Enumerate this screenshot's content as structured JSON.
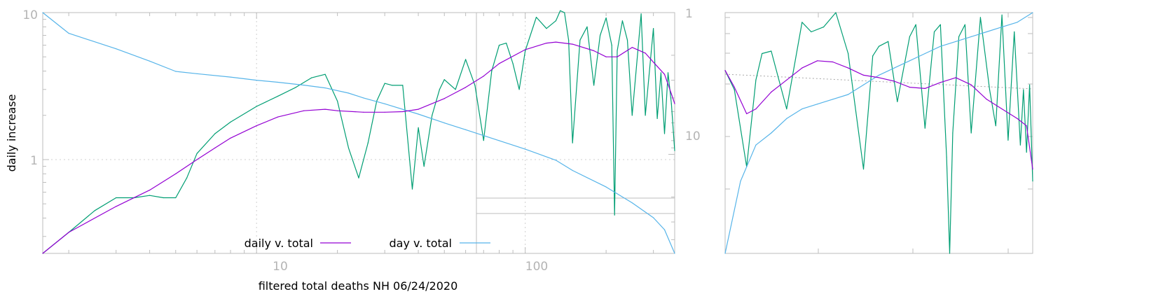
{
  "chart_data": [
    {
      "type": "line",
      "title": "",
      "xlabel": "filtered total deaths NH 06/24/2020",
      "ylabel": "daily increase",
      "xscale": "log",
      "yscale": "log",
      "xlim": [
        1.6,
        360
      ],
      "ylim": [
        0.23,
        10
      ],
      "y2lim": [
        1,
        50
      ],
      "y2_reversed": true,
      "x_ticks": [
        "10",
        "100"
      ],
      "y_ticks": [
        "1",
        "10"
      ],
      "y2_ticks": [
        "1",
        "10"
      ],
      "grid": true,
      "legend_position": "bottom-center",
      "series": [
        {
          "name": "daily v. total",
          "color": "#9400d3",
          "x": [
            1.6,
            2,
            3,
            4,
            5,
            6,
            7,
            8,
            10,
            12,
            15,
            18,
            20,
            25,
            30,
            35,
            40,
            50,
            60,
            70,
            80,
            100,
            120,
            130,
            150,
            180,
            200,
            220,
            250,
            280,
            300,
            330,
            350,
            360
          ],
          "y": [
            0.23,
            0.32,
            0.48,
            0.62,
            0.8,
            1.0,
            1.2,
            1.4,
            1.7,
            1.95,
            2.15,
            2.2,
            2.15,
            2.1,
            2.1,
            2.12,
            2.2,
            2.6,
            3.1,
            3.7,
            4.5,
            5.6,
            6.2,
            6.3,
            6.1,
            5.5,
            5.0,
            5.0,
            5.8,
            5.3,
            4.6,
            3.8,
            2.8,
            2.4
          ]
        },
        {
          "name": "day v. total",
          "color": "#56b4e9",
          "x": [
            1.6,
            2,
            3,
            4,
            5,
            6,
            8,
            10,
            12,
            15,
            18,
            22,
            25,
            30,
            40,
            50,
            60,
            80,
            100,
            130,
            150,
            200,
            250,
            300,
            330,
            360
          ],
          "y": [
            1,
            1.4,
            1.8,
            2.2,
            2.6,
            2.7,
            2.85,
            3.0,
            3.1,
            3.25,
            3.4,
            3.7,
            4.0,
            4.4,
            5.2,
            6.0,
            6.7,
            8.0,
            9.2,
            11,
            13,
            17,
            22,
            28,
            34,
            50
          ]
        },
        {
          "name": "",
          "color": "#009e73",
          "x": [
            1.6,
            2,
            2.5,
            3,
            3.5,
            4,
            4.5,
            5,
            5.5,
            6,
            7,
            8,
            10,
            12,
            14,
            16,
            18,
            20,
            22,
            24,
            26,
            28,
            30,
            32,
            35,
            38,
            40,
            42,
            45,
            48,
            50,
            55,
            60,
            65,
            70,
            75,
            80,
            85,
            90,
            95,
            100,
            110,
            120,
            130,
            135,
            140,
            145,
            150,
            160,
            170,
            180,
            190,
            200,
            210,
            215,
            220,
            230,
            240,
            250,
            270,
            280,
            300,
            310,
            320,
            330,
            340,
            350,
            360
          ],
          "y": [
            0.23,
            0.32,
            0.45,
            0.55,
            0.55,
            0.57,
            0.55,
            0.55,
            0.75,
            1.1,
            1.5,
            1.8,
            2.3,
            2.7,
            3.1,
            3.6,
            3.8,
            2.5,
            1.2,
            0.75,
            1.3,
            2.5,
            3.3,
            3.2,
            3.2,
            0.63,
            1.65,
            0.9,
            2.0,
            3.0,
            3.5,
            3.0,
            4.8,
            3.2,
            1.35,
            4.0,
            6.0,
            6.2,
            4.5,
            3.0,
            5.5,
            9.3,
            7.8,
            8.8,
            10.3,
            10.0,
            6.5,
            1.3,
            6.5,
            8.0,
            3.2,
            7.0,
            9.2,
            6.0,
            0.42,
            5.5,
            8.8,
            6.5,
            2.0,
            9.8,
            2.0,
            7.8,
            1.9,
            3.9,
            1.5,
            3.9,
            2.4,
            1.15
          ]
        }
      ]
    },
    {
      "type": "line",
      "title": "",
      "xlabel": "",
      "ylabel": "",
      "grid": false,
      "legend_position": "",
      "series": [
        {
          "name": "",
          "color": "#9400d3",
          "x": [
            0,
            0.03,
            0.07,
            0.1,
            0.15,
            0.2,
            0.25,
            0.3,
            0.35,
            0.4,
            0.45,
            0.5,
            0.55,
            0.6,
            0.65,
            0.7,
            0.75,
            0.8,
            0.85,
            0.9,
            0.95,
            0.98,
            1.0
          ],
          "y": [
            0.76,
            0.69,
            0.58,
            0.6,
            0.67,
            0.72,
            0.77,
            0.8,
            0.795,
            0.77,
            0.74,
            0.73,
            0.715,
            0.69,
            0.685,
            0.71,
            0.73,
            0.7,
            0.64,
            0.6,
            0.56,
            0.53,
            0.35
          ]
        },
        {
          "name": "",
          "color": "#56b4e9",
          "x": [
            0,
            0.05,
            0.1,
            0.15,
            0.2,
            0.25,
            0.3,
            0.35,
            0.4,
            0.45,
            0.5,
            0.55,
            0.6,
            0.65,
            0.7,
            0.75,
            0.8,
            0.85,
            0.9,
            0.95,
            1.0
          ],
          "y": [
            0.0,
            0.3,
            0.45,
            0.5,
            0.56,
            0.6,
            0.62,
            0.64,
            0.66,
            0.7,
            0.74,
            0.77,
            0.8,
            0.83,
            0.86,
            0.88,
            0.9,
            0.92,
            0.94,
            0.96,
            1.0
          ]
        },
        {
          "name": "",
          "color": "#009e73",
          "x": [
            0,
            0.03,
            0.07,
            0.1,
            0.12,
            0.15,
            0.2,
            0.25,
            0.28,
            0.32,
            0.36,
            0.4,
            0.45,
            0.48,
            0.5,
            0.53,
            0.56,
            0.6,
            0.62,
            0.65,
            0.68,
            0.7,
            0.72,
            0.73,
            0.74,
            0.76,
            0.78,
            0.8,
            0.83,
            0.86,
            0.88,
            0.9,
            0.92,
            0.94,
            0.96,
            0.97,
            0.98,
            0.99,
            1.0
          ],
          "y": [
            0.76,
            0.68,
            0.36,
            0.72,
            0.83,
            0.84,
            0.6,
            0.96,
            0.92,
            0.94,
            1.0,
            0.83,
            0.35,
            0.82,
            0.86,
            0.88,
            0.63,
            0.9,
            0.95,
            0.52,
            0.92,
            0.95,
            0.4,
            0.0,
            0.5,
            0.9,
            0.95,
            0.5,
            0.98,
            0.68,
            0.53,
            0.99,
            0.47,
            0.92,
            0.45,
            0.68,
            0.42,
            0.7,
            0.3
          ]
        }
      ]
    }
  ],
  "legend": {
    "daily_label": "daily v. total",
    "day_label": "day v. total"
  },
  "axes": {
    "x_tick_10": "10",
    "x_tick_100": "100",
    "y_tick_1": "1",
    "y_tick_10": "10",
    "y2_tick_1": "1",
    "y2_tick_10": "10"
  }
}
